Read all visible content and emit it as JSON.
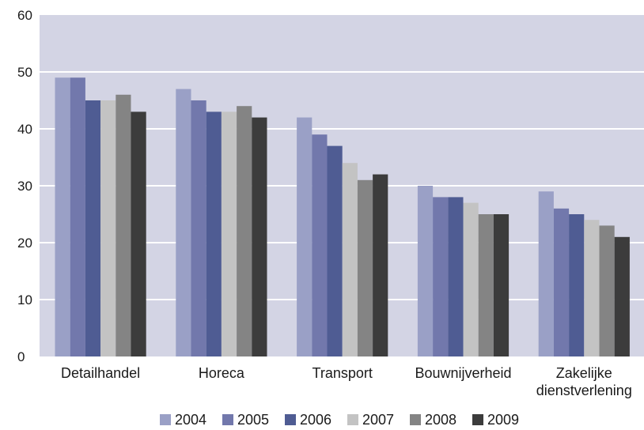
{
  "chart_data": {
    "type": "bar",
    "categories": [
      [
        "Detailhandel"
      ],
      [
        "Horeca"
      ],
      [
        "Transport"
      ],
      [
        "Bouwnijverheid"
      ],
      [
        "Zakelijke",
        "dienstverlening"
      ]
    ],
    "series": [
      {
        "name": "2004",
        "values": [
          49,
          47,
          42,
          30,
          29
        ]
      },
      {
        "name": "2005",
        "values": [
          49,
          45,
          39,
          28,
          26
        ]
      },
      {
        "name": "2006",
        "values": [
          45,
          43,
          37,
          28,
          25
        ]
      },
      {
        "name": "2007",
        "values": [
          45,
          43,
          34,
          27,
          24
        ]
      },
      {
        "name": "2008",
        "values": [
          46,
          44,
          31,
          25,
          23
        ]
      },
      {
        "name": "2009",
        "values": [
          43,
          42,
          32,
          25,
          21
        ]
      }
    ],
    "ylim": [
      0,
      60
    ],
    "yticks": [
      0,
      10,
      20,
      30,
      40,
      50,
      60
    ],
    "grid": true,
    "legend": "bottom",
    "title": "",
    "xlabel": "",
    "ylabel": ""
  },
  "colors": {
    "plot_bg": "#d3d4e4",
    "grid": "#ffffff",
    "series": [
      "#9aa0c6",
      "#7278ac",
      "#4f5c93",
      "#c3c3c3",
      "#848484",
      "#3c3c3c"
    ]
  }
}
